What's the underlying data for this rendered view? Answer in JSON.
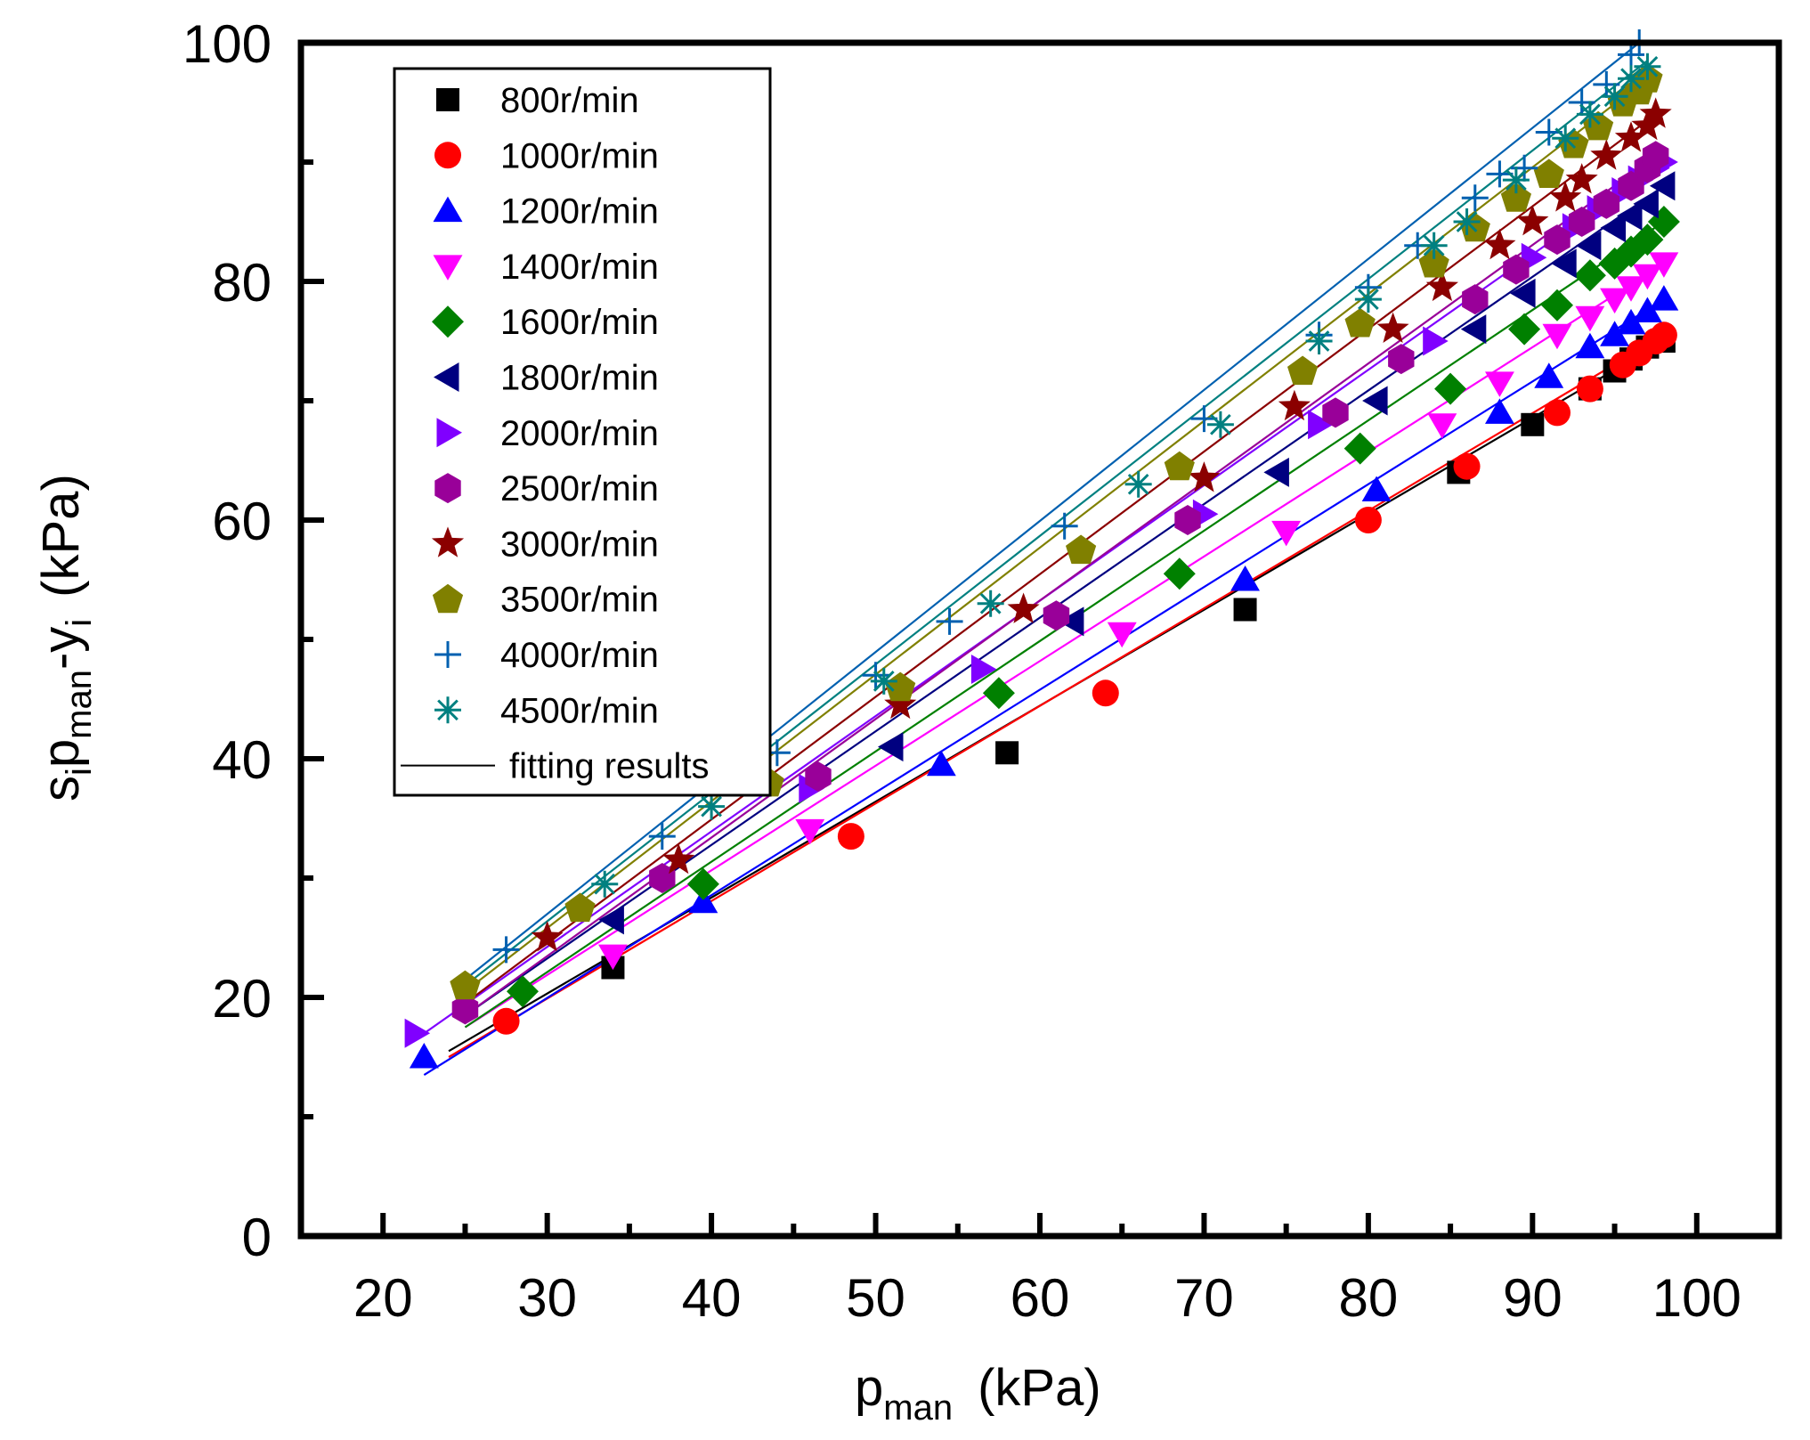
{
  "chart_data": {
    "type": "scatter",
    "title": "",
    "xlabel": {
      "main": "p",
      "sub": "man",
      "unit": "(kPa)"
    },
    "ylabel": {
      "s": "s",
      "s_sub": "i",
      "p": "p",
      "p_sub": "man",
      "minus_y": "-y",
      "y_sub": "i",
      "unit": "(kPa)"
    },
    "xlim": [
      15,
      105
    ],
    "ylim": [
      0,
      100
    ],
    "xticks": [
      20,
      30,
      40,
      50,
      60,
      70,
      80,
      90,
      100
    ],
    "xtick_labels": [
      "20",
      "30",
      "40",
      "50",
      "60",
      "70",
      "80",
      "90",
      "100"
    ],
    "yticks": [
      0,
      20,
      40,
      60,
      80,
      100
    ],
    "ytick_labels": [
      "0",
      "20",
      "40",
      "60",
      "80",
      "100"
    ],
    "grid": false,
    "legend_position": "top-left",
    "fit_label": "fitting results",
    "series": [
      {
        "name": "800r/min",
        "marker": "square",
        "color": "#000000",
        "points": [
          [
            34,
            22.5
          ],
          [
            58,
            40.5
          ],
          [
            72.5,
            52.5
          ],
          [
            85.5,
            64
          ],
          [
            90,
            68
          ],
          [
            93.5,
            71
          ],
          [
            95,
            72.5
          ],
          [
            96,
            73.5
          ],
          [
            97,
            74.5
          ],
          [
            98,
            75
          ]
        ],
        "fit": [
          [
            24,
            15.5
          ],
          [
            98,
            75
          ]
        ]
      },
      {
        "name": "1000r/min",
        "marker": "circle",
        "color": "#ff0000",
        "points": [
          [
            27.5,
            18
          ],
          [
            48.5,
            33.5
          ],
          [
            64,
            45.5
          ],
          [
            80,
            60
          ],
          [
            86,
            64.5
          ],
          [
            91.5,
            69
          ],
          [
            93.5,
            71
          ],
          [
            95.5,
            73
          ],
          [
            96.5,
            74
          ],
          [
            97.5,
            75
          ],
          [
            98,
            75.5
          ]
        ],
        "fit": [
          [
            24,
            15
          ],
          [
            98,
            75.5
          ]
        ]
      },
      {
        "name": "1200r/min",
        "marker": "triangle-up",
        "color": "#0000ff",
        "points": [
          [
            22.5,
            15
          ],
          [
            39.5,
            28
          ],
          [
            54,
            39.5
          ],
          [
            72.5,
            55
          ],
          [
            80.5,
            62.5
          ],
          [
            88,
            69
          ],
          [
            91,
            72
          ],
          [
            93.5,
            74.5
          ],
          [
            95,
            75.5
          ],
          [
            96,
            76.5
          ],
          [
            97,
            77.5
          ],
          [
            98,
            78.5
          ]
        ],
        "fit": [
          [
            22.5,
            13.5
          ],
          [
            98,
            78.5
          ]
        ]
      },
      {
        "name": "1400r/min",
        "marker": "triangle-down",
        "color": "#ff00ff",
        "points": [
          [
            34,
            23.5
          ],
          [
            46,
            34
          ],
          [
            65,
            50.5
          ],
          [
            75,
            59
          ],
          [
            84.5,
            68
          ],
          [
            88,
            71.5
          ],
          [
            91.5,
            75.5
          ],
          [
            93.5,
            77
          ],
          [
            95,
            78.5
          ],
          [
            96,
            79.5
          ],
          [
            97,
            80.5
          ],
          [
            98,
            81.5
          ]
        ],
        "fit": [
          [
            25,
            17.5
          ],
          [
            98,
            81.5
          ]
        ]
      },
      {
        "name": "1600r/min",
        "marker": "diamond",
        "color": "#008000",
        "points": [
          [
            28.5,
            20.5
          ],
          [
            39.5,
            29.5
          ],
          [
            57.5,
            45.5
          ],
          [
            68.5,
            55.5
          ],
          [
            79.5,
            66
          ],
          [
            85,
            71
          ],
          [
            89.5,
            76
          ],
          [
            91.5,
            78
          ],
          [
            93.5,
            80.5
          ],
          [
            95,
            81.5
          ],
          [
            96,
            82.5
          ],
          [
            97,
            83.5
          ],
          [
            98,
            85
          ]
        ],
        "fit": [
          [
            25,
            17.5
          ],
          [
            98,
            85
          ]
        ]
      },
      {
        "name": "1800r/min",
        "marker": "triangle-left",
        "color": "#000080",
        "points": [
          [
            34,
            26.5
          ],
          [
            51,
            41
          ],
          [
            62,
            51.5
          ],
          [
            74.5,
            64
          ],
          [
            80.5,
            70
          ],
          [
            86.5,
            76
          ],
          [
            89.5,
            79
          ],
          [
            92,
            81.5
          ],
          [
            93.5,
            83
          ],
          [
            95,
            84.5
          ],
          [
            96,
            85.5
          ],
          [
            97,
            86.5
          ],
          [
            98,
            88
          ]
        ],
        "fit": [
          [
            25,
            18.5
          ],
          [
            98,
            88
          ]
        ]
      },
      {
        "name": "2000r/min",
        "marker": "triangle-right",
        "color": "#8000ff",
        "points": [
          [
            22,
            17
          ],
          [
            46,
            37.5
          ],
          [
            56.5,
            47.5
          ],
          [
            70,
            60.5
          ],
          [
            77,
            68
          ],
          [
            84,
            75
          ],
          [
            90,
            82
          ],
          [
            92.5,
            84.5
          ],
          [
            94,
            86
          ],
          [
            95.5,
            87.5
          ],
          [
            96.5,
            88.5
          ],
          [
            97.5,
            89.5
          ],
          [
            98,
            90
          ]
        ],
        "fit": [
          [
            22,
            16.5
          ],
          [
            98,
            90
          ]
        ]
      },
      {
        "name": "2500r/min",
        "marker": "hexagon",
        "color": "#990099",
        "points": [
          [
            25,
            19
          ],
          [
            37,
            30
          ],
          [
            46.5,
            38.5
          ],
          [
            61,
            52
          ],
          [
            69,
            60
          ],
          [
            78,
            69
          ],
          [
            82,
            73.5
          ],
          [
            86.5,
            78.5
          ],
          [
            89,
            81
          ],
          [
            91.5,
            83.5
          ],
          [
            93,
            85
          ],
          [
            94.5,
            86.5
          ],
          [
            96,
            88
          ],
          [
            97,
            89.5
          ],
          [
            97.5,
            90.5
          ]
        ],
        "fit": [
          [
            25,
            18.5
          ],
          [
            97.5,
            90.5
          ]
        ]
      },
      {
        "name": "3000r/min",
        "marker": "star",
        "color": "#8b0000",
        "points": [
          [
            30,
            25
          ],
          [
            38,
            31.5
          ],
          [
            51.5,
            44.5
          ],
          [
            59,
            52.5
          ],
          [
            70,
            63.5
          ],
          [
            75.5,
            69.5
          ],
          [
            81.5,
            76
          ],
          [
            84.5,
            79.5
          ],
          [
            88,
            83
          ],
          [
            90,
            85
          ],
          [
            92,
            87
          ],
          [
            93,
            88.5
          ],
          [
            94.5,
            90.5
          ],
          [
            96,
            92
          ],
          [
            97,
            93
          ],
          [
            97.5,
            94
          ]
        ],
        "fit": [
          [
            25,
            19.5
          ],
          [
            97.5,
            94
          ]
        ]
      },
      {
        "name": "3500r/min",
        "marker": "pentagon",
        "color": "#808000",
        "points": [
          [
            25,
            21
          ],
          [
            32,
            27.5
          ],
          [
            43.5,
            38
          ],
          [
            51.5,
            46
          ],
          [
            62.5,
            57.5
          ],
          [
            68.5,
            64.5
          ],
          [
            76,
            72.5
          ],
          [
            79.5,
            76.5
          ],
          [
            84,
            81.5
          ],
          [
            86.5,
            84.5
          ],
          [
            89,
            87
          ],
          [
            91,
            89
          ],
          [
            92.5,
            91.5
          ],
          [
            94,
            93
          ],
          [
            95.5,
            95
          ],
          [
            96.5,
            96
          ],
          [
            97,
            97
          ]
        ],
        "fit": [
          [
            25,
            20.5
          ],
          [
            97,
            97
          ]
        ]
      },
      {
        "name": "4000r/min",
        "marker": "plus",
        "color": "#0060b0",
        "points": [
          [
            27.5,
            24
          ],
          [
            37,
            33.5
          ],
          [
            44,
            40.5
          ],
          [
            50,
            47
          ],
          [
            54.5,
            51.5
          ],
          [
            61.5,
            59.5
          ],
          [
            70,
            68.5
          ],
          [
            77,
            75.5
          ],
          [
            80,
            79.5
          ],
          [
            83,
            83
          ],
          [
            86.5,
            87
          ],
          [
            88,
            89
          ],
          [
            89.5,
            89.5
          ],
          [
            91,
            92.5
          ],
          [
            93,
            95
          ],
          [
            94.5,
            96.5
          ],
          [
            96,
            99
          ],
          [
            96.5,
            100
          ]
        ],
        "fit": [
          [
            25,
            21.5
          ],
          [
            96.5,
            100
          ]
        ]
      },
      {
        "name": "4500r/min",
        "marker": "asterisk",
        "color": "#008080",
        "points": [
          [
            33.5,
            29.5
          ],
          [
            40,
            36
          ],
          [
            50.5,
            46.5
          ],
          [
            57,
            53
          ],
          [
            66,
            63
          ],
          [
            71,
            68
          ],
          [
            77,
            75
          ],
          [
            80,
            78.5
          ],
          [
            84,
            83
          ],
          [
            86,
            85
          ],
          [
            89,
            88.5
          ],
          [
            92,
            92
          ],
          [
            93.5,
            94
          ],
          [
            95,
            95.5
          ],
          [
            96,
            97
          ],
          [
            97,
            98
          ]
        ],
        "fit": [
          [
            25,
            21
          ],
          [
            97,
            98.5
          ]
        ]
      }
    ]
  }
}
